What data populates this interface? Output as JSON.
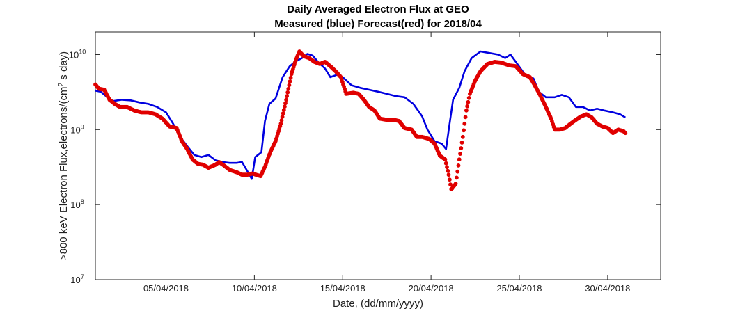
{
  "chart_data": {
    "type": "line",
    "title": "Daily Averaged Electron Flux at GEO",
    "subtitle": "Measured (blue) Forecast(red) for 2018/04",
    "xlabel": "Date, (dd/mm/yyyy)",
    "ylabel_prefix": ">800 keV Electron Flux,electrons/(cm",
    "ylabel_sup": "2",
    "ylabel_suffix": " s day)",
    "x_unit": "day of April 2018",
    "xlim": [
      1,
      33
    ],
    "ylim": [
      10000000,
      20000000000
    ],
    "yscale": "log",
    "grid": false,
    "x_ticks": [
      {
        "value": 5,
        "label": "05/04/2018"
      },
      {
        "value": 10,
        "label": "10/04/2018"
      },
      {
        "value": 15,
        "label": "15/04/2018"
      },
      {
        "value": 20,
        "label": "20/04/2018"
      },
      {
        "value": 25,
        "label": "25/04/2018"
      },
      {
        "value": 30,
        "label": "30/04/2018"
      }
    ],
    "y_ticks": [
      {
        "value": 10000000,
        "base": "10",
        "exp": "7"
      },
      {
        "value": 100000000,
        "base": "10",
        "exp": "8"
      },
      {
        "value": 1000000000,
        "base": "10",
        "exp": "9"
      },
      {
        "value": 10000000000,
        "base": "10",
        "exp": "10"
      }
    ],
    "series": [
      {
        "name": "Measured",
        "color": "#0000e0",
        "style": "line",
        "points": [
          [
            1.0,
            3300000000.0
          ],
          [
            1.3,
            3200000000.0
          ],
          [
            1.6,
            2800000000.0
          ],
          [
            2.0,
            2400000000.0
          ],
          [
            2.5,
            2500000000.0
          ],
          [
            3.0,
            2450000000.0
          ],
          [
            3.5,
            2300000000.0
          ],
          [
            4.0,
            2200000000.0
          ],
          [
            4.5,
            2000000000.0
          ],
          [
            5.0,
            1700000000.0
          ],
          [
            5.4,
            1200000000.0
          ],
          [
            5.8,
            800000000.0
          ],
          [
            6.2,
            600000000.0
          ],
          [
            6.6,
            460000000.0
          ],
          [
            7.0,
            430000000.0
          ],
          [
            7.4,
            460000000.0
          ],
          [
            7.8,
            390000000.0
          ],
          [
            8.2,
            370000000.0
          ],
          [
            8.6,
            360000000.0
          ],
          [
            9.0,
            360000000.0
          ],
          [
            9.3,
            370000000.0
          ],
          [
            9.6,
            280000000.0
          ],
          [
            9.85,
            220000000.0
          ],
          [
            10.05,
            430000000.0
          ],
          [
            10.4,
            500000000.0
          ],
          [
            10.6,
            1300000000.0
          ],
          [
            10.85,
            2200000000.0
          ],
          [
            11.2,
            2600000000.0
          ],
          [
            11.6,
            5000000000.0
          ],
          [
            12.0,
            7000000000.0
          ],
          [
            12.3,
            8000000000.0
          ],
          [
            12.7,
            9000000000.0
          ],
          [
            13.0,
            10200000000.0
          ],
          [
            13.3,
            9700000000.0
          ],
          [
            13.6,
            8000000000.0
          ],
          [
            14.0,
            6500000000.0
          ],
          [
            14.3,
            5000000000.0
          ],
          [
            14.7,
            5400000000.0
          ],
          [
            15.0,
            5000000000.0
          ],
          [
            15.5,
            3900000000.0
          ],
          [
            16.0,
            3600000000.0
          ],
          [
            16.5,
            3400000000.0
          ],
          [
            17.0,
            3200000000.0
          ],
          [
            17.5,
            3000000000.0
          ],
          [
            18.0,
            2800000000.0
          ],
          [
            18.5,
            2700000000.0
          ],
          [
            19.0,
            2200000000.0
          ],
          [
            19.5,
            1500000000.0
          ],
          [
            19.8,
            1000000000.0
          ],
          [
            20.2,
            700000000.0
          ],
          [
            20.6,
            650000000.0
          ],
          [
            20.85,
            550000000.0
          ],
          [
            21.05,
            1200000000.0
          ],
          [
            21.25,
            2500000000.0
          ],
          [
            21.6,
            3600000000.0
          ],
          [
            21.9,
            6000000000.0
          ],
          [
            22.3,
            9000000000.0
          ],
          [
            22.8,
            11000000000.0
          ],
          [
            23.3,
            10500000000.0
          ],
          [
            23.8,
            10000000000.0
          ],
          [
            24.2,
            9000000000.0
          ],
          [
            24.5,
            10000000000.0
          ],
          [
            24.8,
            8000000000.0
          ],
          [
            25.3,
            5500000000.0
          ],
          [
            25.8,
            4800000000.0
          ],
          [
            26.1,
            3200000000.0
          ],
          [
            26.5,
            2700000000.0
          ],
          [
            27.0,
            2700000000.0
          ],
          [
            27.4,
            2900000000.0
          ],
          [
            27.8,
            2700000000.0
          ],
          [
            28.2,
            2000000000.0
          ],
          [
            28.6,
            2000000000.0
          ],
          [
            29.0,
            1800000000.0
          ],
          [
            29.4,
            1900000000.0
          ],
          [
            29.8,
            1800000000.0
          ],
          [
            30.3,
            1700000000.0
          ],
          [
            30.7,
            1600000000.0
          ],
          [
            31.0,
            1450000000.0
          ]
        ]
      },
      {
        "name": "Forecast",
        "color": "#e00000",
        "style": "dots",
        "points": [
          [
            1.0,
            4000000000.0
          ],
          [
            1.2,
            3500000000.0
          ],
          [
            1.5,
            3400000000.0
          ],
          [
            1.8,
            2500000000.0
          ],
          [
            2.1,
            2200000000.0
          ],
          [
            2.4,
            2000000000.0
          ],
          [
            2.8,
            2000000000.0
          ],
          [
            3.2,
            1800000000.0
          ],
          [
            3.6,
            1700000000.0
          ],
          [
            4.0,
            1700000000.0
          ],
          [
            4.4,
            1600000000.0
          ],
          [
            4.8,
            1400000000.0
          ],
          [
            5.2,
            1100000000.0
          ],
          [
            5.6,
            1050000000.0
          ],
          [
            5.9,
            700000000.0
          ],
          [
            6.2,
            550000000.0
          ],
          [
            6.5,
            400000000.0
          ],
          [
            6.8,
            350000000.0
          ],
          [
            7.1,
            340000000.0
          ],
          [
            7.4,
            310000000.0
          ],
          [
            7.8,
            340000000.0
          ],
          [
            8.0,
            370000000.0
          ],
          [
            8.3,
            330000000.0
          ],
          [
            8.6,
            290000000.0
          ],
          [
            9.0,
            270000000.0
          ],
          [
            9.3,
            250000000.0
          ],
          [
            9.6,
            250000000.0
          ],
          [
            9.9,
            260000000.0
          ],
          [
            10.1,
            250000000.0
          ],
          [
            10.35,
            240000000.0
          ],
          [
            10.6,
            320000000.0
          ],
          [
            10.9,
            500000000.0
          ],
          [
            11.2,
            700000000.0
          ],
          [
            11.5,
            1200000000.0
          ],
          [
            11.8,
            2500000000.0
          ],
          [
            12.1,
            5500000000.0
          ],
          [
            12.35,
            8500000000.0
          ],
          [
            12.55,
            11000000000.0
          ],
          [
            12.8,
            9500000000.0
          ],
          [
            13.1,
            9000000000.0
          ],
          [
            13.4,
            8000000000.0
          ],
          [
            13.7,
            7500000000.0
          ],
          [
            14.0,
            8000000000.0
          ],
          [
            14.3,
            7000000000.0
          ],
          [
            14.6,
            6000000000.0
          ],
          [
            14.9,
            5000000000.0
          ],
          [
            15.2,
            3000000000.0
          ],
          [
            15.6,
            3100000000.0
          ],
          [
            15.9,
            3000000000.0
          ],
          [
            16.2,
            2500000000.0
          ],
          [
            16.5,
            2000000000.0
          ],
          [
            16.8,
            1800000000.0
          ],
          [
            17.1,
            1400000000.0
          ],
          [
            17.5,
            1350000000.0
          ],
          [
            17.9,
            1350000000.0
          ],
          [
            18.2,
            1300000000.0
          ],
          [
            18.5,
            1050000000.0
          ],
          [
            18.9,
            1000000000.0
          ],
          [
            19.2,
            800000000.0
          ],
          [
            19.5,
            800000000.0
          ],
          [
            19.9,
            750000000.0
          ],
          [
            20.2,
            650000000.0
          ],
          [
            20.5,
            450000000.0
          ],
          [
            20.8,
            400000000.0
          ],
          [
            21.0,
            250000000.0
          ],
          [
            21.15,
            160000000.0
          ],
          [
            21.4,
            190000000.0
          ],
          [
            21.6,
            400000000.0
          ],
          [
            21.8,
            800000000.0
          ],
          [
            22.0,
            1800000000.0
          ],
          [
            22.2,
            3000000000.0
          ],
          [
            22.5,
            4500000000.0
          ],
          [
            22.8,
            6000000000.0
          ],
          [
            23.2,
            7500000000.0
          ],
          [
            23.6,
            8000000000.0
          ],
          [
            24.0,
            7800000000.0
          ],
          [
            24.4,
            7200000000.0
          ],
          [
            24.8,
            7000000000.0
          ],
          [
            25.2,
            5500000000.0
          ],
          [
            25.6,
            5000000000.0
          ],
          [
            25.9,
            3800000000.0
          ],
          [
            26.2,
            2800000000.0
          ],
          [
            26.5,
            2000000000.0
          ],
          [
            26.8,
            1400000000.0
          ],
          [
            27.0,
            1000000000.0
          ],
          [
            27.3,
            1000000000.0
          ],
          [
            27.6,
            1050000000.0
          ],
          [
            27.9,
            1200000000.0
          ],
          [
            28.2,
            1350000000.0
          ],
          [
            28.5,
            1500000000.0
          ],
          [
            28.8,
            1600000000.0
          ],
          [
            29.1,
            1450000000.0
          ],
          [
            29.4,
            1200000000.0
          ],
          [
            29.7,
            1100000000.0
          ],
          [
            30.0,
            1050000000.0
          ],
          [
            30.3,
            900000000.0
          ],
          [
            30.6,
            1000000000.0
          ],
          [
            30.9,
            950000000.0
          ],
          [
            31.0,
            900000000.0
          ]
        ]
      }
    ]
  }
}
